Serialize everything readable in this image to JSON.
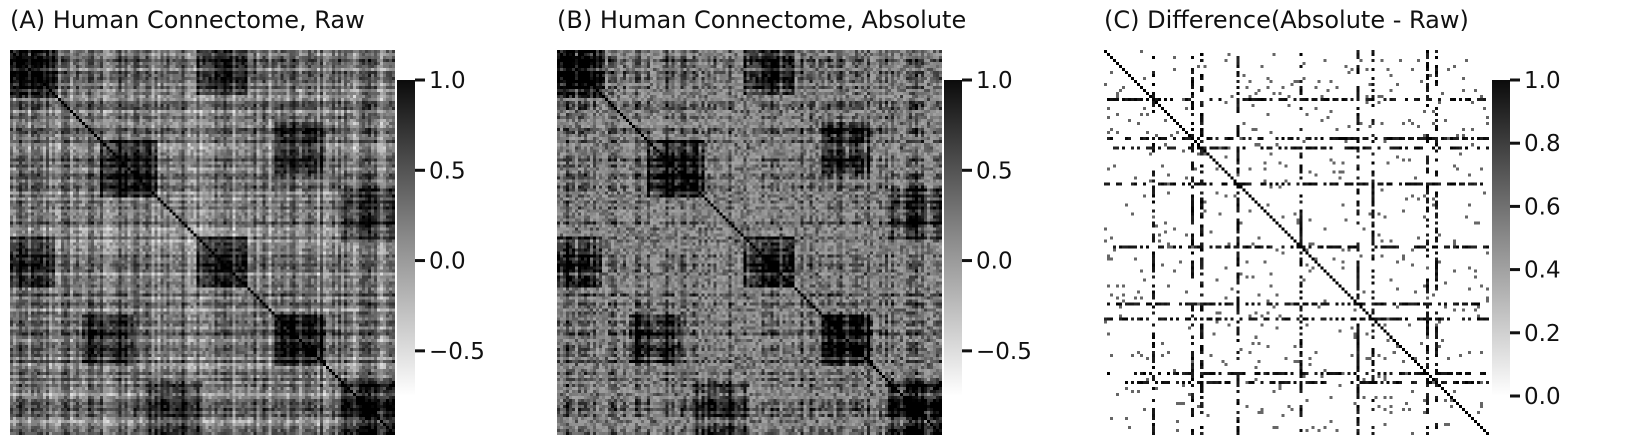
{
  "chart_data": [
    {
      "type": "heatmap",
      "title": "(A) Human Connectome, Raw",
      "colormap": "grayscale (white = low, black = high)",
      "colorbar": {
        "ticks": [
          1.0,
          0.5,
          0.0,
          -0.5
        ],
        "tick_labels": [
          "1.0",
          "0.5",
          "0.0",
          "−0.5"
        ],
        "range": [
          -0.75,
          1.0
        ]
      },
      "matrix": "symmetric correlation matrix, dark diagonal, two repeated dark block structures",
      "xlabel": "",
      "ylabel": "",
      "grid": false
    },
    {
      "type": "heatmap",
      "title": "(B) Human Connectome, Absolute",
      "colormap": "grayscale (white = low, black = high)",
      "colorbar": {
        "ticks": [
          1.0,
          0.5,
          0.0,
          -0.5
        ],
        "tick_labels": [
          "1.0",
          "0.5",
          "0.0",
          "−0.5"
        ],
        "range": [
          -0.75,
          1.0
        ]
      },
      "matrix": "symmetric absolute-valued correlation matrix, mid-gray background with dark blocks",
      "xlabel": "",
      "ylabel": "",
      "grid": false
    },
    {
      "type": "heatmap",
      "title": "(C) Difference(Absolute - Raw)",
      "colormap": "grayscale (white = 0, black = 1)",
      "colorbar": {
        "ticks": [
          1.0,
          0.8,
          0.6,
          0.4,
          0.2,
          0.0
        ],
        "tick_labels": [
          "1.0",
          "0.8",
          "0.6",
          "0.4",
          "0.2",
          "0.0"
        ],
        "range": [
          0.0,
          1.0
        ]
      },
      "matrix": "sparse difference matrix, mostly white with dark streaks in specific rows/columns",
      "xlabel": "",
      "ylabel": "",
      "grid": false
    }
  ]
}
